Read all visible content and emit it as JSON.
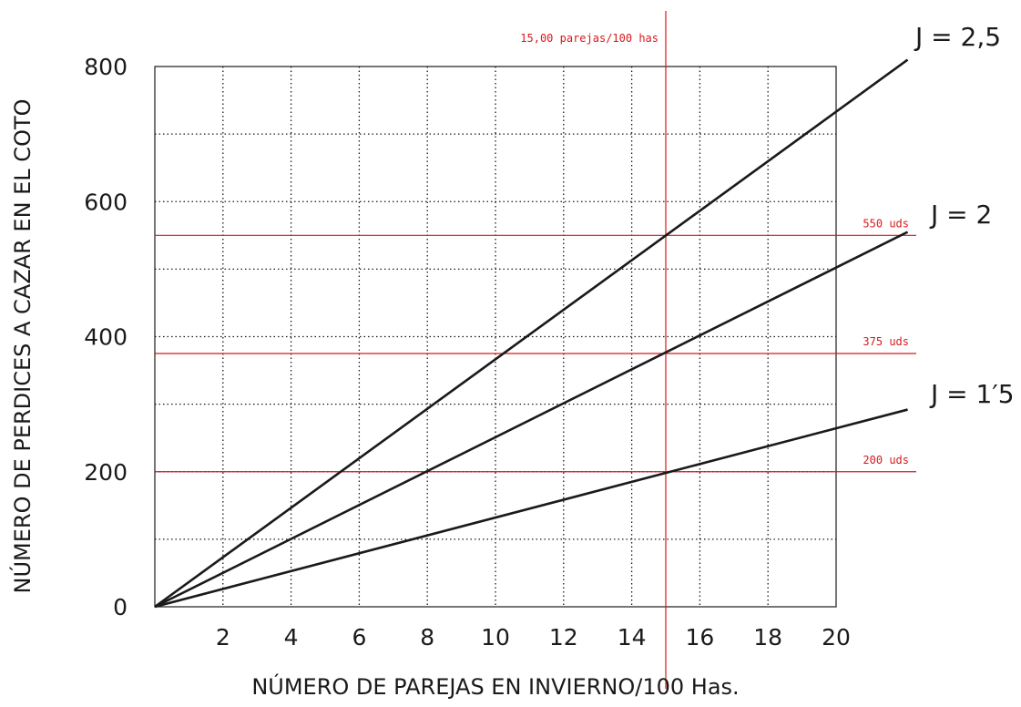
{
  "chart_data": {
    "type": "line",
    "title": "",
    "xlabel": "NÚMERO DE PAREJAS EN INVIERNO/100 Has.",
    "ylabel": "NÚMERO DE PERDICES A CAZAR EN EL COTO",
    "xlim": [
      0,
      20
    ],
    "ylim": [
      0,
      800
    ],
    "x_ticks": [
      2,
      4,
      6,
      8,
      10,
      12,
      14,
      16,
      18,
      20
    ],
    "y_ticks": [
      0,
      200,
      400,
      600,
      800
    ],
    "grid": true,
    "series": [
      {
        "name": "J = 2,5",
        "x": [
          0,
          22.1
        ],
        "y": [
          0,
          810
        ]
      },
      {
        "name": "J = 2",
        "x": [
          0,
          22.1
        ],
        "y": [
          0,
          555
        ]
      },
      {
        "name": "J = 1′5",
        "x": [
          0,
          22.1
        ],
        "y": [
          0,
          292
        ]
      }
    ],
    "reference_lines": [
      {
        "axis": "x",
        "value": 15.0,
        "label": "15,00 parejas/100 has"
      },
      {
        "axis": "y",
        "value": 550,
        "label": "550 uds"
      },
      {
        "axis": "y",
        "value": 375,
        "label": "375 uds"
      },
      {
        "axis": "y",
        "value": 200,
        "label": "200 uds"
      }
    ],
    "colors": {
      "series": "#1a1a1a",
      "reference": "#d7191c",
      "grid": "#1a1a1a"
    }
  }
}
